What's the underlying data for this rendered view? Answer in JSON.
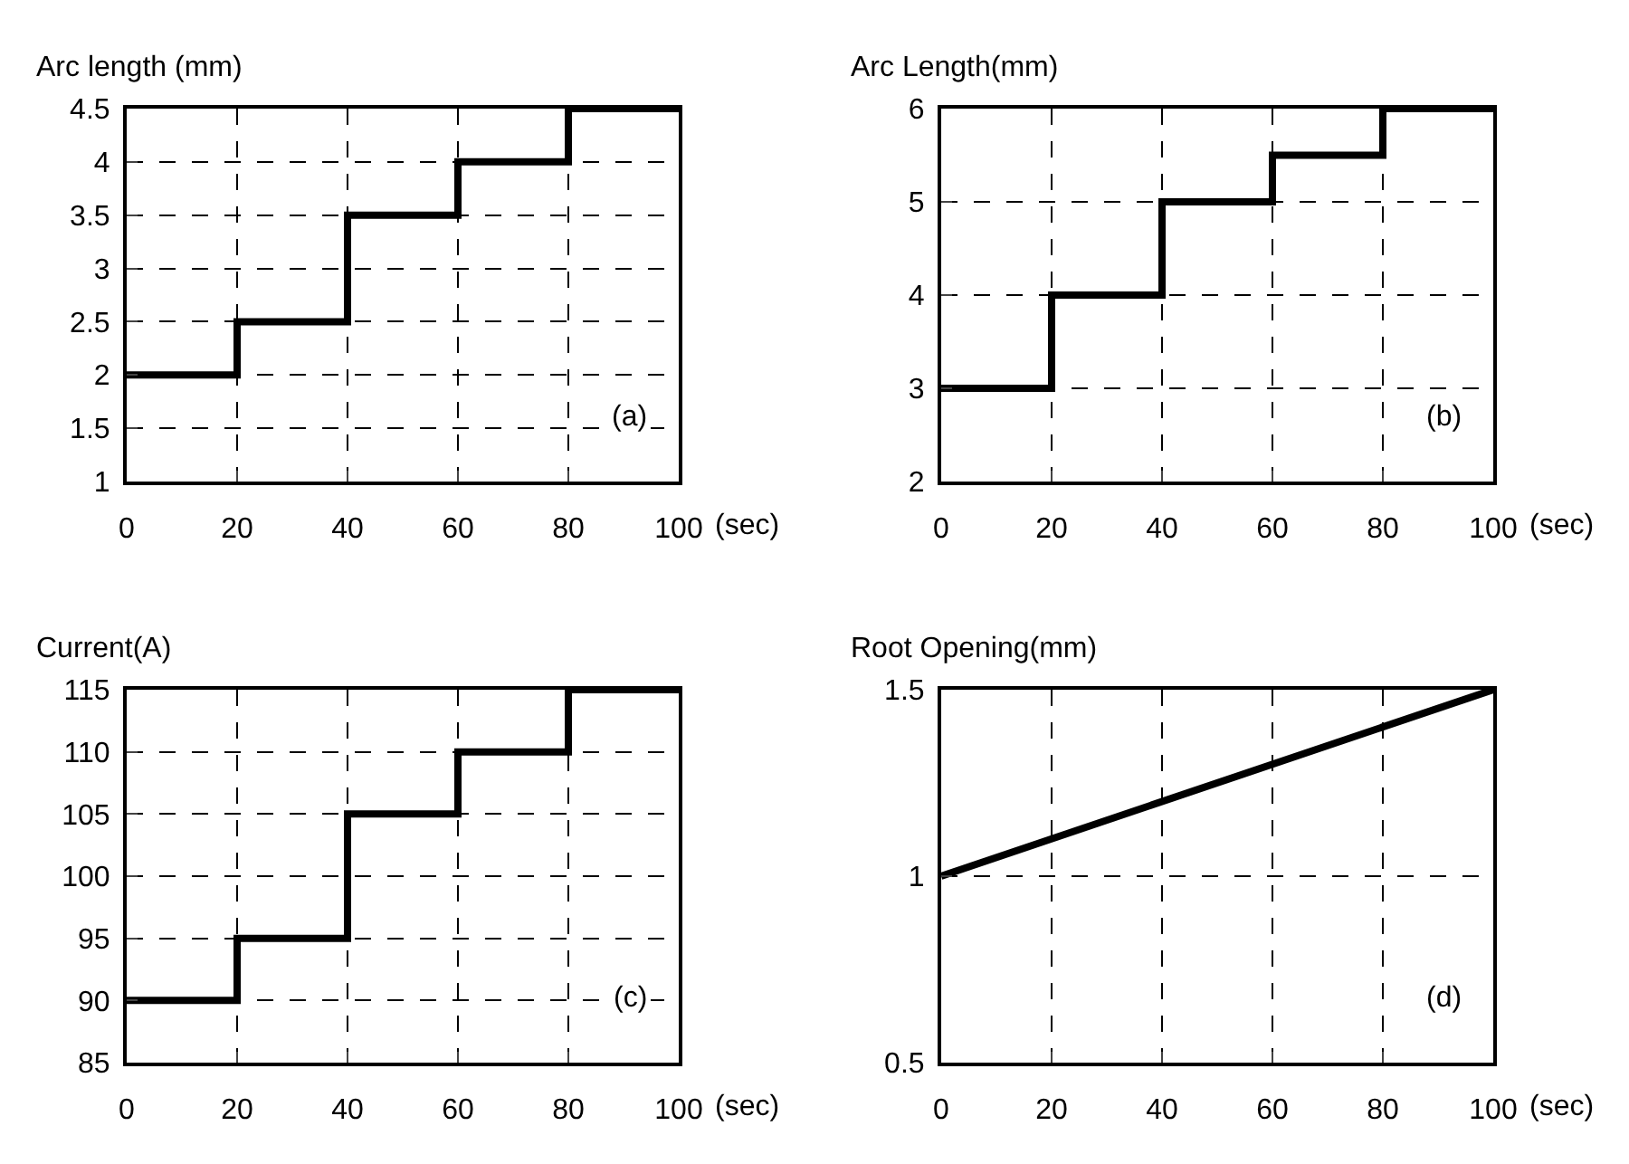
{
  "chart_data": [
    {
      "type": "step",
      "ylabel": "Arc length (mm)",
      "xlabel": "(sec)",
      "annotations": [
        "(a)"
      ],
      "x": [
        0,
        20,
        40,
        60,
        80,
        100
      ],
      "series": [
        {
          "color": "#000000",
          "values": [
            2,
            2.5,
            3.5,
            4,
            4.5,
            4.5
          ]
        }
      ],
      "xlim": [
        0,
        100
      ],
      "xticks": [
        0,
        20,
        40,
        60,
        80,
        100
      ],
      "ylim": [
        1,
        4.5
      ],
      "yticks": [
        1,
        1.5,
        2,
        2.5,
        3,
        3.5,
        4,
        4.5
      ],
      "grid": true,
      "line_style": "solid",
      "marker": "none"
    },
    {
      "type": "step",
      "ylabel": "Arc Length(mm)",
      "xlabel": "(sec)",
      "annotations": [
        "(b)"
      ],
      "x": [
        0,
        20,
        40,
        60,
        80,
        100
      ],
      "series": [
        {
          "color": "#000000",
          "values": [
            3,
            4,
            5,
            5.5,
            6,
            6
          ]
        }
      ],
      "xlim": [
        0,
        100
      ],
      "xticks": [
        0,
        20,
        40,
        60,
        80,
        100
      ],
      "ylim": [
        2,
        6
      ],
      "yticks": [
        2,
        3,
        4,
        5,
        6
      ],
      "grid": true,
      "line_style": "solid",
      "marker": "none"
    },
    {
      "type": "step",
      "ylabel": "Current(A)",
      "xlabel": "(sec)",
      "annotations": [
        "(c)"
      ],
      "x": [
        0,
        20,
        40,
        60,
        80,
        100
      ],
      "series": [
        {
          "color": "#000000",
          "values": [
            90,
            95,
            105,
            110,
            115,
            115
          ]
        }
      ],
      "xlim": [
        0,
        100
      ],
      "xticks": [
        0,
        20,
        40,
        60,
        80,
        100
      ],
      "ylim": [
        85,
        115
      ],
      "yticks": [
        85,
        90,
        95,
        100,
        105,
        110,
        115
      ],
      "grid": true,
      "line_style": "solid",
      "marker": "none"
    },
    {
      "type": "line",
      "ylabel": "Root Opening(mm)",
      "xlabel": "(sec)",
      "annotations": [
        "(d)"
      ],
      "x": [
        0,
        100
      ],
      "series": [
        {
          "color": "#000000",
          "values": [
            1,
            1.5
          ]
        }
      ],
      "xlim": [
        0,
        100
      ],
      "xticks": [
        0,
        20,
        40,
        60,
        80,
        100
      ],
      "ylim": [
        0.5,
        1.5
      ],
      "yticks": [
        0.5,
        1,
        1.5
      ],
      "grid": true,
      "line_style": "solid",
      "marker": "none"
    }
  ]
}
